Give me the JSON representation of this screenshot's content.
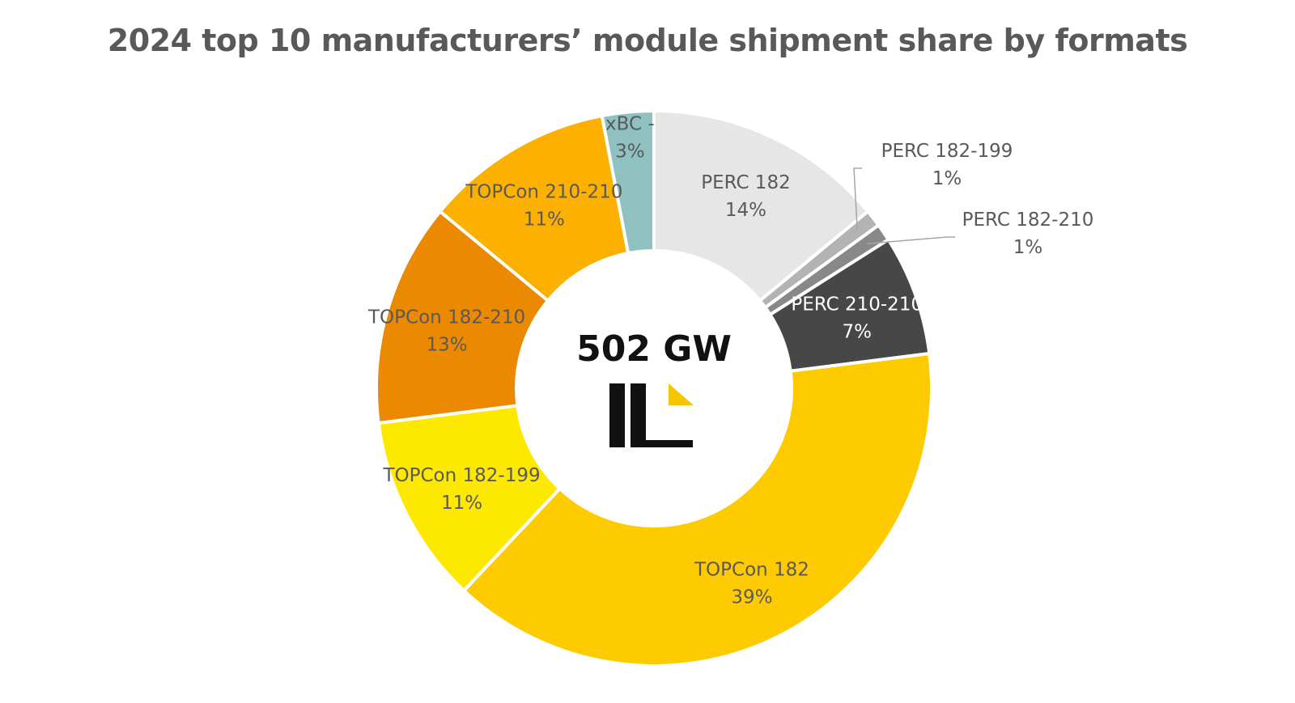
{
  "chart_data": {
    "type": "pie",
    "title": "2024 top 10 manufacturers’ module shipment share by formats",
    "center_label": "502 GW",
    "logo": "il-logo",
    "slices": [
      {
        "label": "PERC 182",
        "value": 14,
        "value_label": "14%",
        "color": "#e6e6e6"
      },
      {
        "label": "PERC 182-199",
        "value": 1,
        "value_label": "1%",
        "color": "#b3b3b3"
      },
      {
        "label": "PERC 182-210",
        "value": 1,
        "value_label": "1%",
        "color": "#888888"
      },
      {
        "label": "PERC 210-210",
        "value": 7,
        "value_label": "7%",
        "color": "#474747"
      },
      {
        "label": "TOPCon 182",
        "value": 39,
        "value_label": "39%",
        "color": "#fdcb00"
      },
      {
        "label": "TOPCon 182-199",
        "value": 11,
        "value_label": "11%",
        "color": "#fde800"
      },
      {
        "label": "TOPCon 182-210",
        "value": 13,
        "value_label": "13%",
        "color": "#eb8a00"
      },
      {
        "label": "TOPCon 210-210",
        "value": 11,
        "value_label": "11%",
        "color": "#fcb100"
      },
      {
        "label": "xBC -",
        "value": 3,
        "value_label": "3%",
        "color": "#8fc1c0"
      }
    ]
  }
}
